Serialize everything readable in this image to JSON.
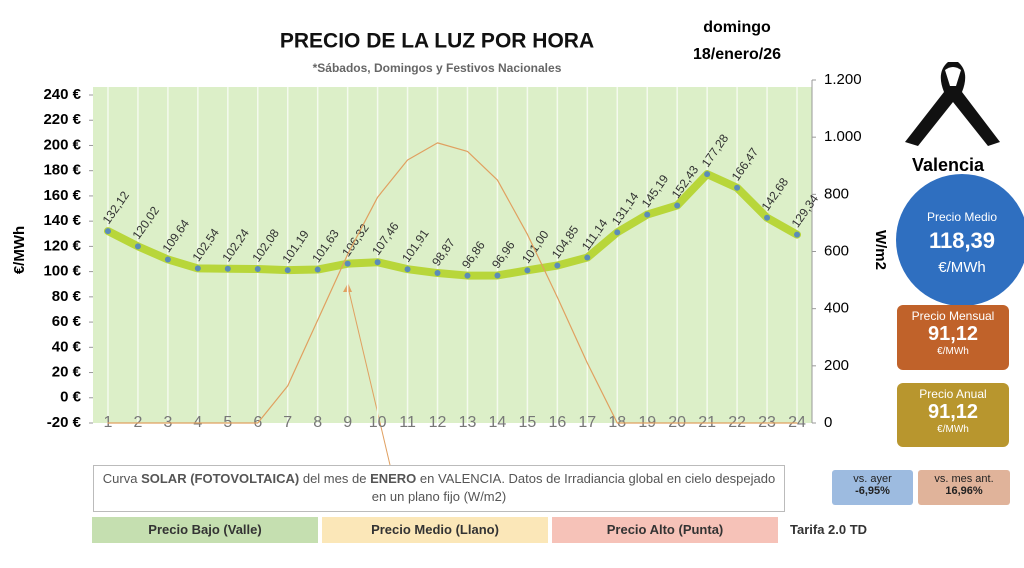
{
  "chart_data": {
    "type": "line",
    "title": "PRECIO DE LA LUZ POR HORA",
    "subtitle": "*Sábados, Domingos y Festivos Nacionales",
    "ylabel": "€/MWh",
    "y2label": "W/m2",
    "categories": [
      "1",
      "2",
      "3",
      "4",
      "5",
      "6",
      "7",
      "8",
      "9",
      "10",
      "11",
      "12",
      "13",
      "14",
      "15",
      "16",
      "17",
      "18",
      "19",
      "20",
      "21",
      "22",
      "23",
      "24"
    ],
    "series": [
      {
        "color": "#b8d63a",
        "marker_color": "#5b8cb8",
        "values": [
          132.12,
          120.02,
          109.64,
          102.54,
          102.24,
          102.08,
          101.19,
          101.63,
          106.32,
          107.46,
          101.91,
          98.87,
          96.86,
          96.96,
          101.0,
          104.85,
          111.14,
          131.14,
          145.19,
          152.43,
          177.28,
          166.47,
          142.68,
          129.34
        ],
        "value_labels": [
          "132,12",
          "120,02",
          "109,64",
          "102,54",
          "102,24",
          "102,08",
          "101,19",
          "101,63",
          "106,32",
          "107,46",
          "101,91",
          "98,87",
          "96,86",
          "96,96",
          "101,00",
          "104,85",
          "111,14",
          "131,14",
          "145,19",
          "152,43",
          "177,28",
          "166,47",
          "142,68",
          "129,34"
        ]
      },
      {
        "axis": "y2",
        "color": "#e0a060",
        "values": [
          0,
          0,
          0,
          0,
          0,
          0,
          130,
          360,
          590,
          790,
          920,
          980,
          950,
          850,
          660,
          440,
          210,
          0,
          0,
          0,
          0,
          0,
          0,
          0
        ]
      }
    ],
    "ylim": [
      -20,
      240
    ],
    "yticks": [
      {
        "value": -20,
        "label": "-20 €"
      },
      {
        "value": 0,
        "label": "0 €"
      },
      {
        "value": 20,
        "label": "20 €"
      },
      {
        "value": 40,
        "label": "40 €"
      },
      {
        "value": 60,
        "label": "60 €"
      },
      {
        "value": 80,
        "label": "80 €"
      },
      {
        "value": 100,
        "label": "100 €"
      },
      {
        "value": 120,
        "label": "120 €"
      },
      {
        "value": 140,
        "label": "140 €"
      },
      {
        "value": 160,
        "label": "160 €"
      },
      {
        "value": 180,
        "label": "180 €"
      },
      {
        "value": 200,
        "label": "200 €"
      },
      {
        "value": 220,
        "label": "220 €"
      },
      {
        "value": 240,
        "label": "240 €"
      }
    ],
    "y2lim": [
      0,
      1200
    ],
    "y2ticks": [
      0,
      200,
      400,
      600,
      800,
      {
        "value": 1000,
        "label": "1.000"
      },
      {
        "value": 1200,
        "label": "1.200"
      }
    ],
    "grid": true
  },
  "panel": {
    "day": "domingo",
    "date": "18/enero/26",
    "city": "Valencia",
    "medio": {
      "label": "Precio Medio",
      "value": "118,39",
      "unit": "€/MWh"
    },
    "mensual": {
      "label": "Precio Mensual",
      "value": "91,12",
      "unit": "€/MWh"
    },
    "anual": {
      "label": "Precio Anual",
      "value": "91,12",
      "unit": "€/MWh"
    },
    "vs_ayer": {
      "label": "vs. ayer",
      "value": "-6,95%"
    },
    "vs_mes": {
      "label": "vs. mes ant.",
      "value": "16,96%"
    },
    "note": [
      "Curva ",
      "SOLAR (FOTOVOLTAICA)",
      " del mes de ",
      "ENERO",
      " en VALENCIA. Datos de Irradiancia global en cielo despejado en un plano fijo (W/m2)"
    ],
    "legend": [
      "Precio Bajo (Valle)",
      "Precio Medio (Llano)",
      "Precio Alto (Punta)"
    ],
    "tarifa": "Tarifa 2.0 TD"
  }
}
